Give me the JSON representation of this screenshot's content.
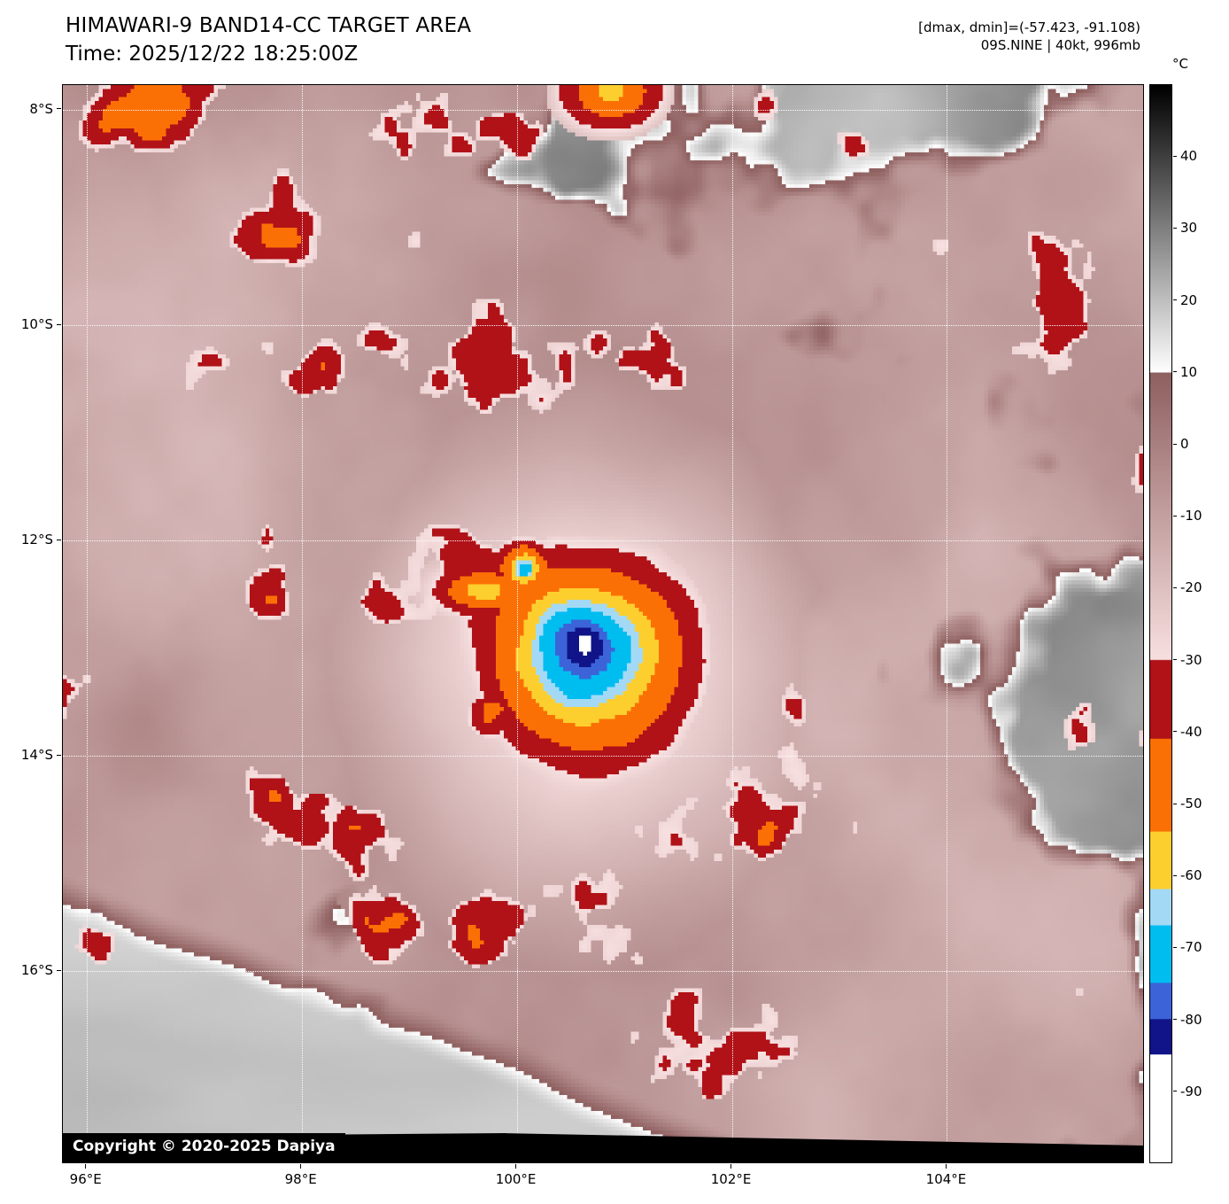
{
  "header": {
    "title": "HIMAWARI-9 BAND14-CC TARGET AREA",
    "time": "Time: 2025/12/22 18:25:00Z",
    "stats": "[dmax, dmin]=(-57.423, -91.108)",
    "storm": "09S.NINE | 40kt, 996mb"
  },
  "footer_copyright": "Copyright © 2020-2025 Dapiya",
  "colorbar": {
    "unit": "°C",
    "ticks": [
      40,
      30,
      20,
      10,
      0,
      -10,
      -20,
      -30,
      -40,
      -50,
      -60,
      -70,
      -80,
      -90
    ]
  },
  "axes": {
    "x_tick_labels": [
      "96°E",
      "98°E",
      "100°E",
      "102°E",
      "104°E"
    ],
    "y_tick_labels": [
      "8°S",
      "10°S",
      "12°S",
      "14°S",
      "16°S"
    ]
  },
  "chart_data": {
    "type": "heatmap",
    "title": "HIMAWARI-9 BAND14-CC TARGET AREA",
    "time": "2025/12/22 18:25:00Z",
    "satellite": "HIMAWARI-9",
    "band": "BAND14-CC",
    "dmax_c": -57.423,
    "dmin_c": -91.108,
    "storm_id": "09S.NINE",
    "storm_wind_kt": 40,
    "storm_pressure_mb": 996,
    "x_axis": {
      "tick_values_deg_e": [
        96,
        98,
        100,
        102,
        104
      ],
      "tick_labels": [
        "96°E",
        "98°E",
        "100°E",
        "102°E",
        "104°E"
      ]
    },
    "y_axis": {
      "tick_values_deg_s": [
        8,
        10,
        12,
        14,
        16
      ],
      "tick_labels": [
        "8°S",
        "10°S",
        "12°S",
        "14°S",
        "16°S"
      ]
    },
    "colorbar": {
      "unit": "°C",
      "tick_values_c": [
        40,
        30,
        20,
        10,
        0,
        -10,
        -20,
        -30,
        -40,
        -50,
        -60,
        -70,
        -80,
        -90
      ],
      "segments": [
        {
          "from": 50,
          "to": 10,
          "color_top": "#000000",
          "color_bottom": "#ffffff"
        },
        {
          "from": 10,
          "to": -30,
          "color_top": "#8f6060",
          "color_bottom": "#f8e0e0"
        },
        {
          "from": -30,
          "to": -41,
          "color_top": "#b01218",
          "color_bottom": "#b01218"
        },
        {
          "from": -41,
          "to": -54,
          "color_top": "#fb7005",
          "color_bottom": "#fb7005"
        },
        {
          "from": -54,
          "to": -62,
          "color_top": "#fccf2e",
          "color_bottom": "#fccf2e"
        },
        {
          "from": -62,
          "to": -67,
          "color_top": "#a4d9f6",
          "color_bottom": "#a4d9f6"
        },
        {
          "from": -67,
          "to": -75,
          "color_top": "#00bdf0",
          "color_bottom": "#00bdf0"
        },
        {
          "from": -75,
          "to": -80,
          "color_top": "#3c64d8",
          "color_bottom": "#3c64d8"
        },
        {
          "from": -80,
          "to": -85,
          "color_top": "#101488",
          "color_bottom": "#101488"
        },
        {
          "from": -85,
          "to": -100,
          "color_top": "#ffffff",
          "color_bottom": "#ffffff"
        }
      ]
    }
  }
}
